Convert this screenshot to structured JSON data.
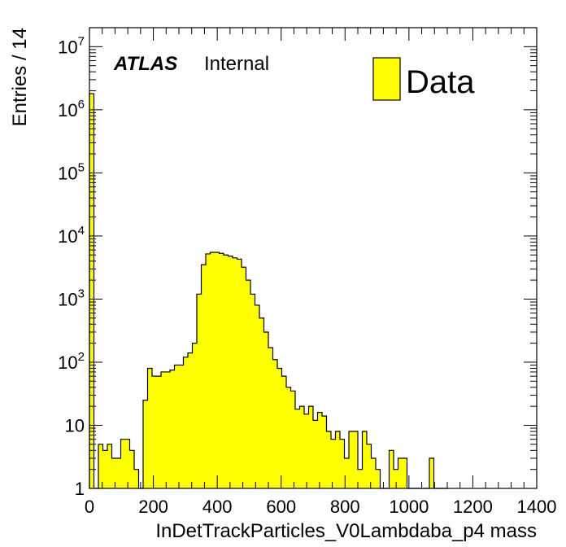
{
  "chart_data": {
    "type": "bar",
    "title": "",
    "xlabel": "InDetTrackParticles_V0Lambdaba_p4 mass",
    "ylabel": "Entries / 14",
    "xlim": [
      0,
      1400
    ],
    "ylim": [
      1,
      20000000
    ],
    "y_scale": "log",
    "bin_width": 14,
    "x_ticks": [
      0,
      200,
      400,
      600,
      800,
      1000,
      1200,
      1400
    ],
    "x_tick_labels": [
      "0",
      "200",
      "400",
      "600",
      "800",
      "1000",
      "1200",
      "1400"
    ],
    "y_ticks": [
      {
        "value": 1,
        "base": "1",
        "exp": ""
      },
      {
        "value": 10,
        "base": "10",
        "exp": ""
      },
      {
        "value": 100,
        "base": "10",
        "exp": "2"
      },
      {
        "value": 1000,
        "base": "10",
        "exp": "3"
      },
      {
        "value": 10000,
        "base": "10",
        "exp": "4"
      },
      {
        "value": 100000,
        "base": "10",
        "exp": "5"
      },
      {
        "value": 1000000,
        "base": "10",
        "exp": "6"
      },
      {
        "value": 10000000,
        "base": "10",
        "exp": "7"
      }
    ],
    "legend_placement": "top-right",
    "series": [
      {
        "name": "Data",
        "color": "#ffff00",
        "edge_color": "#000000",
        "bin_edges_start": 0,
        "values": [
          1800000,
          1,
          5,
          4,
          5,
          3,
          3,
          6,
          6,
          4,
          2,
          1,
          25,
          80,
          60,
          60,
          70,
          70,
          75,
          90,
          90,
          120,
          140,
          200,
          1200,
          3500,
          5200,
          5500,
          5500,
          5300,
          5000,
          4800,
          4500,
          4300,
          3200,
          2000,
          1200,
          800,
          500,
          300,
          170,
          110,
          80,
          60,
          40,
          35,
          18,
          20,
          15,
          20,
          12,
          16,
          14,
          8,
          6,
          8,
          6,
          3,
          8,
          8,
          2,
          8,
          5,
          3,
          2,
          1,
          0,
          4,
          2,
          3,
          3,
          1,
          0,
          1,
          1,
          1,
          3,
          0,
          0,
          0
        ]
      }
    ],
    "annotations": {
      "atlas": "ATLAS",
      "status": "Internal"
    }
  }
}
